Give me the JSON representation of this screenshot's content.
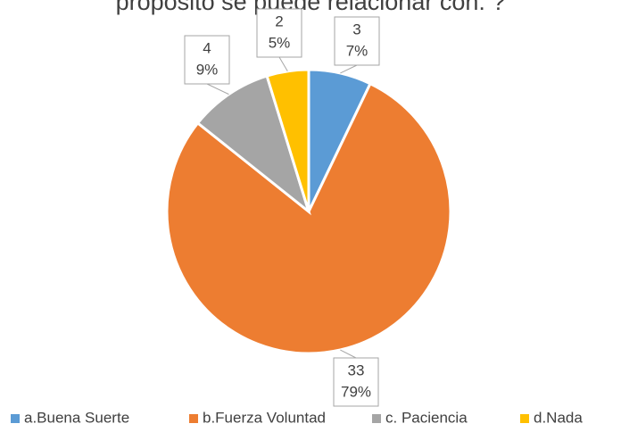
{
  "chart_data": {
    "type": "pie",
    "title": "propósito se puede relacionar con: ?",
    "categories": [
      "a.Buena Suerte",
      "b.Fuerza Voluntad",
      "c. Paciencia",
      "d.Nada"
    ],
    "values": [
      3,
      33,
      4,
      2
    ],
    "percent_labels": [
      "7%",
      "79%",
      "9%",
      "5%"
    ],
    "colors": [
      "#5b9bd5",
      "#ed7d31",
      "#a5a5a5",
      "#ffc000"
    ],
    "legend": "bottom"
  }
}
